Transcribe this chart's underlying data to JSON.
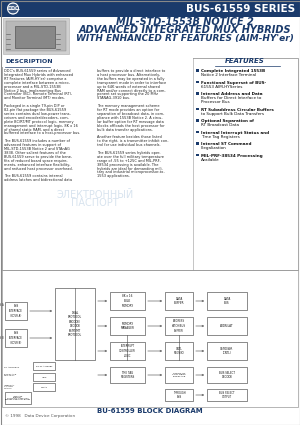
{
  "header_bg": "#1a3a6b",
  "header_text": "BUS-61559 SERIES",
  "header_text_color": "#ffffff",
  "title_line1": "MIL-STD-1553B NOTICE 2",
  "title_line2": "ADVANCED INTEGRATED MUX HYBRIDS",
  "title_line3": "WITH ENHANCED RT FEATURES (AIM-HY'er)",
  "title_color": "#1a3a6b",
  "section_desc_title": "DESCRIPTION",
  "section_feat_title": "FEATURES",
  "desc_col1": [
    "DDC's BUS-61559 series of Advanced",
    "Integrated Mux Hybrids with enhanced",
    "RT Features (AIM-HY'er) comprise a",
    "complete interface between a micro-",
    "processor and a MIL-STD-1553B",
    "Notice 2 bus, implementing Bus",
    "Controller (BC), Remote Terminal (RT),",
    "and Monitor Terminal (MT) modes.",
    "",
    "Packaged in a single 79-pin DIP or",
    "82-pin flat package the BUS-61559",
    "series contains dual low-power trans-",
    "ceivers and encoder/decoders, com-",
    "plete BC/RT/MT protocol logic, memory",
    "management and interrupt logic, 8K x 16",
    "of shared static RAM, and a direct",
    "buffered interface to a host-processor bus.",
    "",
    "The BUS-61559 includes a number of",
    "advanced features in support of",
    "MIL-STD-1553B Notice 2 and STAnAG",
    "3838. Other salient features of the",
    "BUS-61559 serve to provide the bene-",
    "fits of reduced board space require-",
    "ments, enhanced interface flexibility,",
    "and reduced host processor overhead.",
    "",
    "The BUS-61559 contains internal",
    "address latches and bidirectional data"
  ],
  "desc_col2": [
    "buffers to provide a direct interface to",
    "a host processor bus. Alternatively,",
    "the buffers may be operated in a fully",
    "transparent mode in order to interface",
    "up to 64K words of external shared",
    "RAM and/or connect directly to a com-",
    "ponent set supporting the 20 MHz",
    "STANAG-3910 bus.",
    "",
    "The memory management scheme",
    "for RT mode provides an option for",
    "separation of broadcast data, in com-",
    "pliance with 1553B Notice 2. A circu-",
    "lar buffer option for RT message data",
    "blocks offloads the host processor for",
    "bulk data transfer applications.",
    "",
    "Another feature besides those listed",
    "to the right, is a transmitter inhibit con-",
    "trol for use individual bus channels.",
    "",
    "The BUS-61559 series hybrids oper-",
    "ate over the full military temperature",
    "range of -55 to +125C and MIL-PRF-",
    "38534 processing is available. The",
    "hybrids are ideal for demanding mili-",
    "tary and industrial microprocessor-to-",
    "1553 applications."
  ],
  "features": [
    [
      "Complete Integrated 1553B",
      "Notice 2 Interface Terminal"
    ],
    [
      "Functional Superset of BUS-",
      "61553 AIM-HYSeries"
    ],
    [
      "Internal Address and Data",
      "Buffers for Direct Interface to",
      "Processor Bus"
    ],
    [
      "RT Subaddress Circular Buffers",
      "to Support Bulk Data Transfers"
    ],
    [
      "Optional Separation of",
      "RT Broadcast Data"
    ],
    [
      "Internal Interrupt Status and",
      "Time Tag Registers"
    ],
    [
      "Internal ST Command",
      "Illegalization"
    ],
    [
      "MIL-PRF-38534 Processing",
      "Available"
    ]
  ],
  "diagram_label": "BU-61559 BLOCK DIAGRAM",
  "footer_text": "© 1998   Data Device Corporation",
  "accent_color": "#1a3a6b",
  "feat_accent": "#1a3a6b",
  "border_color": "#999999",
  "body_bg": "#ffffff",
  "watermark_color": "#c8d8e8",
  "diag_line_color": "#444444",
  "diag_box_color": "#333333"
}
